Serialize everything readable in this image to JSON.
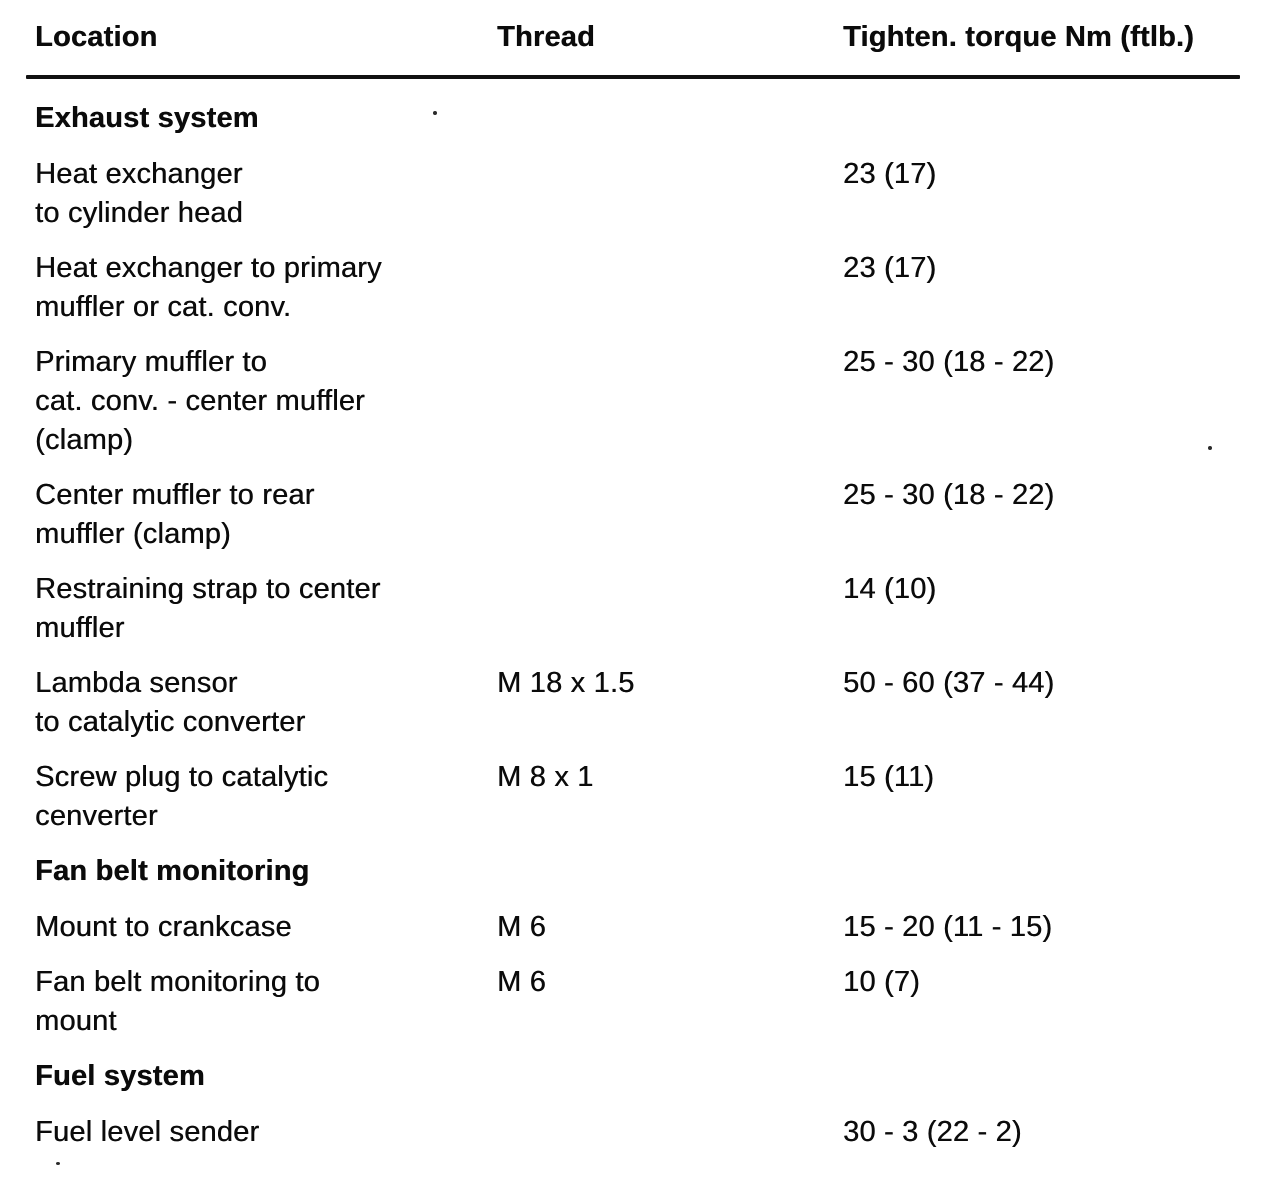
{
  "table": {
    "columns": [
      {
        "label": "Location"
      },
      {
        "label": "Thread"
      },
      {
        "label": "Tighten. torque Nm (ftlb.)"
      }
    ],
    "sections": [
      {
        "title": "Exhaust system",
        "rows": [
          {
            "location": "Heat exchanger\nto cylinder head",
            "thread": "",
            "torque": "23 (17)"
          },
          {
            "location": "Heat exchanger to primary\nmuffler or cat. conv.",
            "thread": "",
            "torque": "23 (17)"
          },
          {
            "location": "Primary muffler to\ncat. conv. - center muffler\n(clamp)",
            "thread": "",
            "torque": "25 - 30 (18 - 22)"
          },
          {
            "location": "Center muffler to rear\nmuffler (clamp)",
            "thread": "",
            "torque": "25 - 30 (18 - 22)"
          },
          {
            "location": "Restraining strap to center\nmuffler",
            "thread": "",
            "torque": "14 (10)"
          },
          {
            "location": "Lambda sensor\nto catalytic converter",
            "thread": "M 18 x 1.5",
            "torque": "50 - 60 (37 - 44)"
          },
          {
            "location": "Screw plug to catalytic\ncenverter",
            "thread": "M 8 x 1",
            "torque": "15 (11)"
          }
        ]
      },
      {
        "title": "Fan belt monitoring",
        "rows": [
          {
            "location": "Mount to crankcase",
            "thread": "M 6",
            "torque": "15 - 20 (11 - 15)"
          },
          {
            "location": "Fan belt monitoring to\nmount",
            "thread": "M 6",
            "torque": "10 (7)"
          }
        ]
      },
      {
        "title": "Fuel system",
        "rows": [
          {
            "location": "Fuel level sender",
            "thread": "",
            "torque": "30 - 3 (22 - 2)"
          }
        ]
      }
    ]
  }
}
